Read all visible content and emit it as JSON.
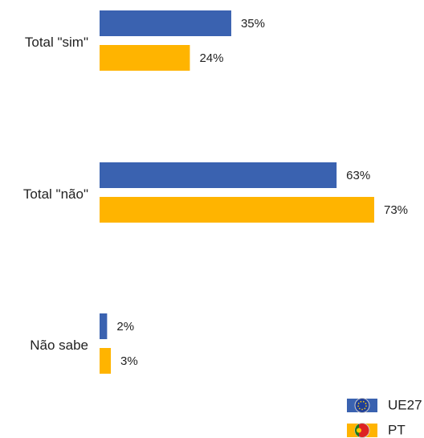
{
  "chart_data": {
    "type": "bar",
    "orientation": "horizontal",
    "categories": [
      "Total \"sim\"",
      "Total \"não\"",
      "Não sabe"
    ],
    "series": [
      {
        "name": "UE27",
        "color": "#3a62b0",
        "values": [
          35,
          63,
          2
        ],
        "value_labels": [
          "35%",
          "63%",
          "2%"
        ]
      },
      {
        "name": "PT",
        "color": "#ffb400",
        "values": [
          24,
          73,
          3
        ],
        "value_labels": [
          "24%",
          "73%",
          "3%"
        ]
      }
    ]
  }
}
